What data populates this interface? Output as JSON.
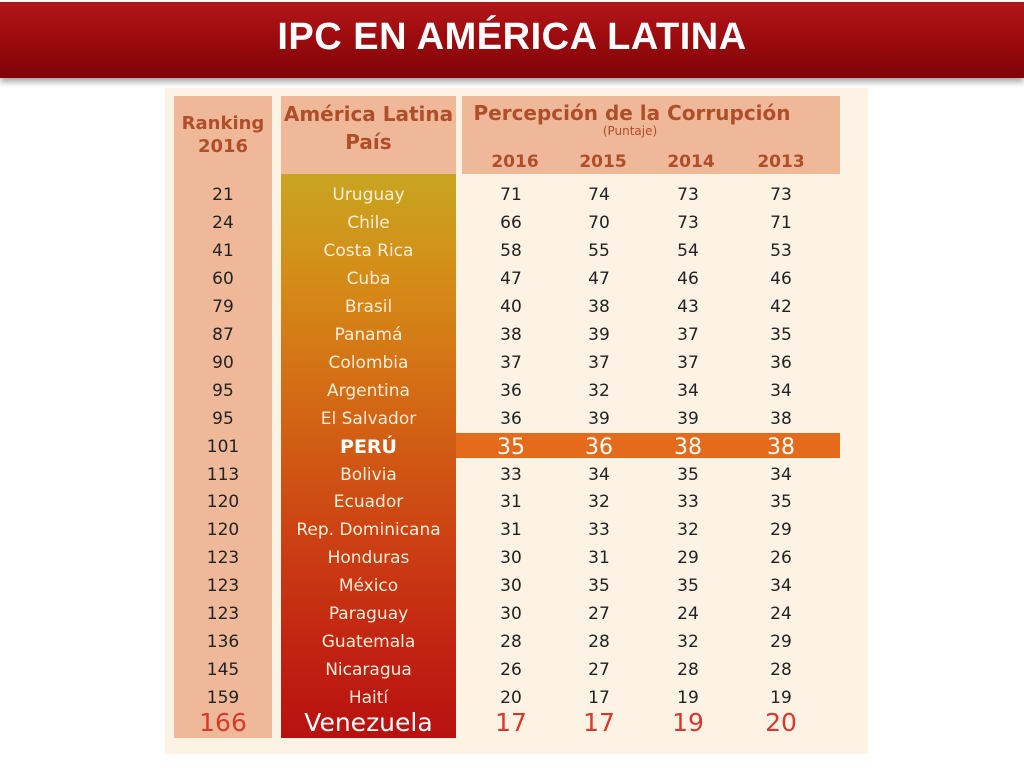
{
  "title": "IPC EN AMÉRICA LATINA",
  "chart_data": {
    "type": "table",
    "headers": {
      "ranking": [
        "Ranking",
        "2016"
      ],
      "pais": [
        "América Latina",
        "País"
      ],
      "perception": "Percepción de la Corrupción",
      "perception_sub": "(Puntaje)",
      "years": [
        "2016",
        "2015",
        "2014",
        "2013"
      ]
    },
    "rows": [
      {
        "rank": "21",
        "country": "Uruguay",
        "scores": [
          "71",
          "74",
          "73",
          "73"
        ]
      },
      {
        "rank": "24",
        "country": "Chile",
        "scores": [
          "66",
          "70",
          "73",
          "71"
        ]
      },
      {
        "rank": "41",
        "country": "Costa Rica",
        "scores": [
          "58",
          "55",
          "54",
          "53"
        ]
      },
      {
        "rank": "60",
        "country": "Cuba",
        "scores": [
          "47",
          "47",
          "46",
          "46"
        ]
      },
      {
        "rank": "79",
        "country": "Brasil",
        "scores": [
          "40",
          "38",
          "43",
          "42"
        ]
      },
      {
        "rank": "87",
        "country": "Panamá",
        "scores": [
          "38",
          "39",
          "37",
          "35"
        ]
      },
      {
        "rank": "90",
        "country": "Colombia",
        "scores": [
          "37",
          "37",
          "37",
          "36"
        ]
      },
      {
        "rank": "95",
        "country": "Argentina",
        "scores": [
          "36",
          "32",
          "34",
          "34"
        ]
      },
      {
        "rank": "95",
        "country": "El Salvador",
        "scores": [
          "36",
          "39",
          "39",
          "38"
        ]
      },
      {
        "rank": "101",
        "country": "PERÚ",
        "scores": [
          "35",
          "36",
          "38",
          "38"
        ],
        "highlight": true
      },
      {
        "rank": "113",
        "country": "Bolivia",
        "scores": [
          "33",
          "34",
          "35",
          "34"
        ]
      },
      {
        "rank": "120",
        "country": "Ecuador",
        "scores": [
          "31",
          "32",
          "33",
          "35"
        ]
      },
      {
        "rank": "120",
        "country": "Rep. Dominicana",
        "scores": [
          "31",
          "33",
          "32",
          "29"
        ]
      },
      {
        "rank": "123",
        "country": "Honduras",
        "scores": [
          "30",
          "31",
          "29",
          "26"
        ]
      },
      {
        "rank": "123",
        "country": "México",
        "scores": [
          "30",
          "35",
          "35",
          "34"
        ]
      },
      {
        "rank": "123",
        "country": "Paraguay",
        "scores": [
          "30",
          "27",
          "24",
          "24"
        ]
      },
      {
        "rank": "136",
        "country": "Guatemala",
        "scores": [
          "28",
          "28",
          "32",
          "29"
        ]
      },
      {
        "rank": "145",
        "country": "Nicaragua",
        "scores": [
          "26",
          "27",
          "28",
          "28"
        ]
      },
      {
        "rank": "159",
        "country": "Haití",
        "scores": [
          "20",
          "17",
          "19",
          "19"
        ]
      },
      {
        "rank": "166",
        "country": "Venezuela",
        "scores": [
          "17",
          "17",
          "19",
          "20"
        ],
        "emphasis": true
      }
    ]
  },
  "colors": {
    "banner": "#9e0b0e",
    "header_fill": "#efb999",
    "header_text": "#b04e2a",
    "highlight_band": "#e46a1c",
    "emphasis_text": "#d73a2c"
  }
}
